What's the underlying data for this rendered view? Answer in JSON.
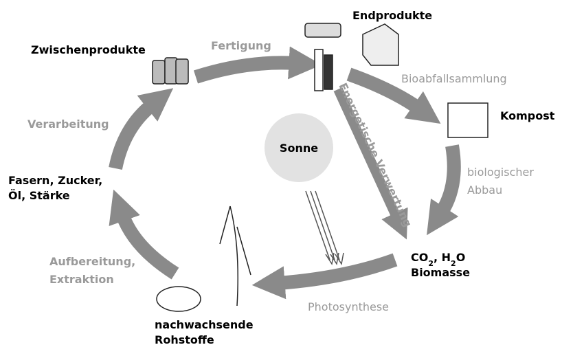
{
  "center": "Sonne",
  "nodes": [
    {
      "lines": [
        "Zwischenprodukte"
      ]
    },
    {
      "lines": [
        "Endprodukte"
      ]
    },
    {
      "lines": [
        "Kompost"
      ]
    },
    {
      "lines": [
        [
          "CO",
          "2",
          ", H",
          "2",
          "O"
        ],
        "Biomasse"
      ]
    },
    {
      "lines": [
        "nachwachsende",
        "Rohstoffe"
      ]
    },
    {
      "lines": [
        "Fasern, Zucker,",
        "Öl, Stärke"
      ]
    }
  ],
  "edges": [
    {
      "lines": [
        "Fertigung"
      ]
    },
    {
      "lines": [
        "Bioabfallsammlung"
      ]
    },
    {
      "lines": [
        "biologischer",
        "Abbau"
      ]
    },
    {
      "lines": [
        "Photosynthese"
      ]
    },
    {
      "lines": [
        "Aufbereitung,",
        "Extraktion"
      ]
    },
    {
      "lines": [
        "Verarbeitung"
      ]
    },
    {
      "lines": [
        "Energetische Verwertung"
      ]
    }
  ]
}
